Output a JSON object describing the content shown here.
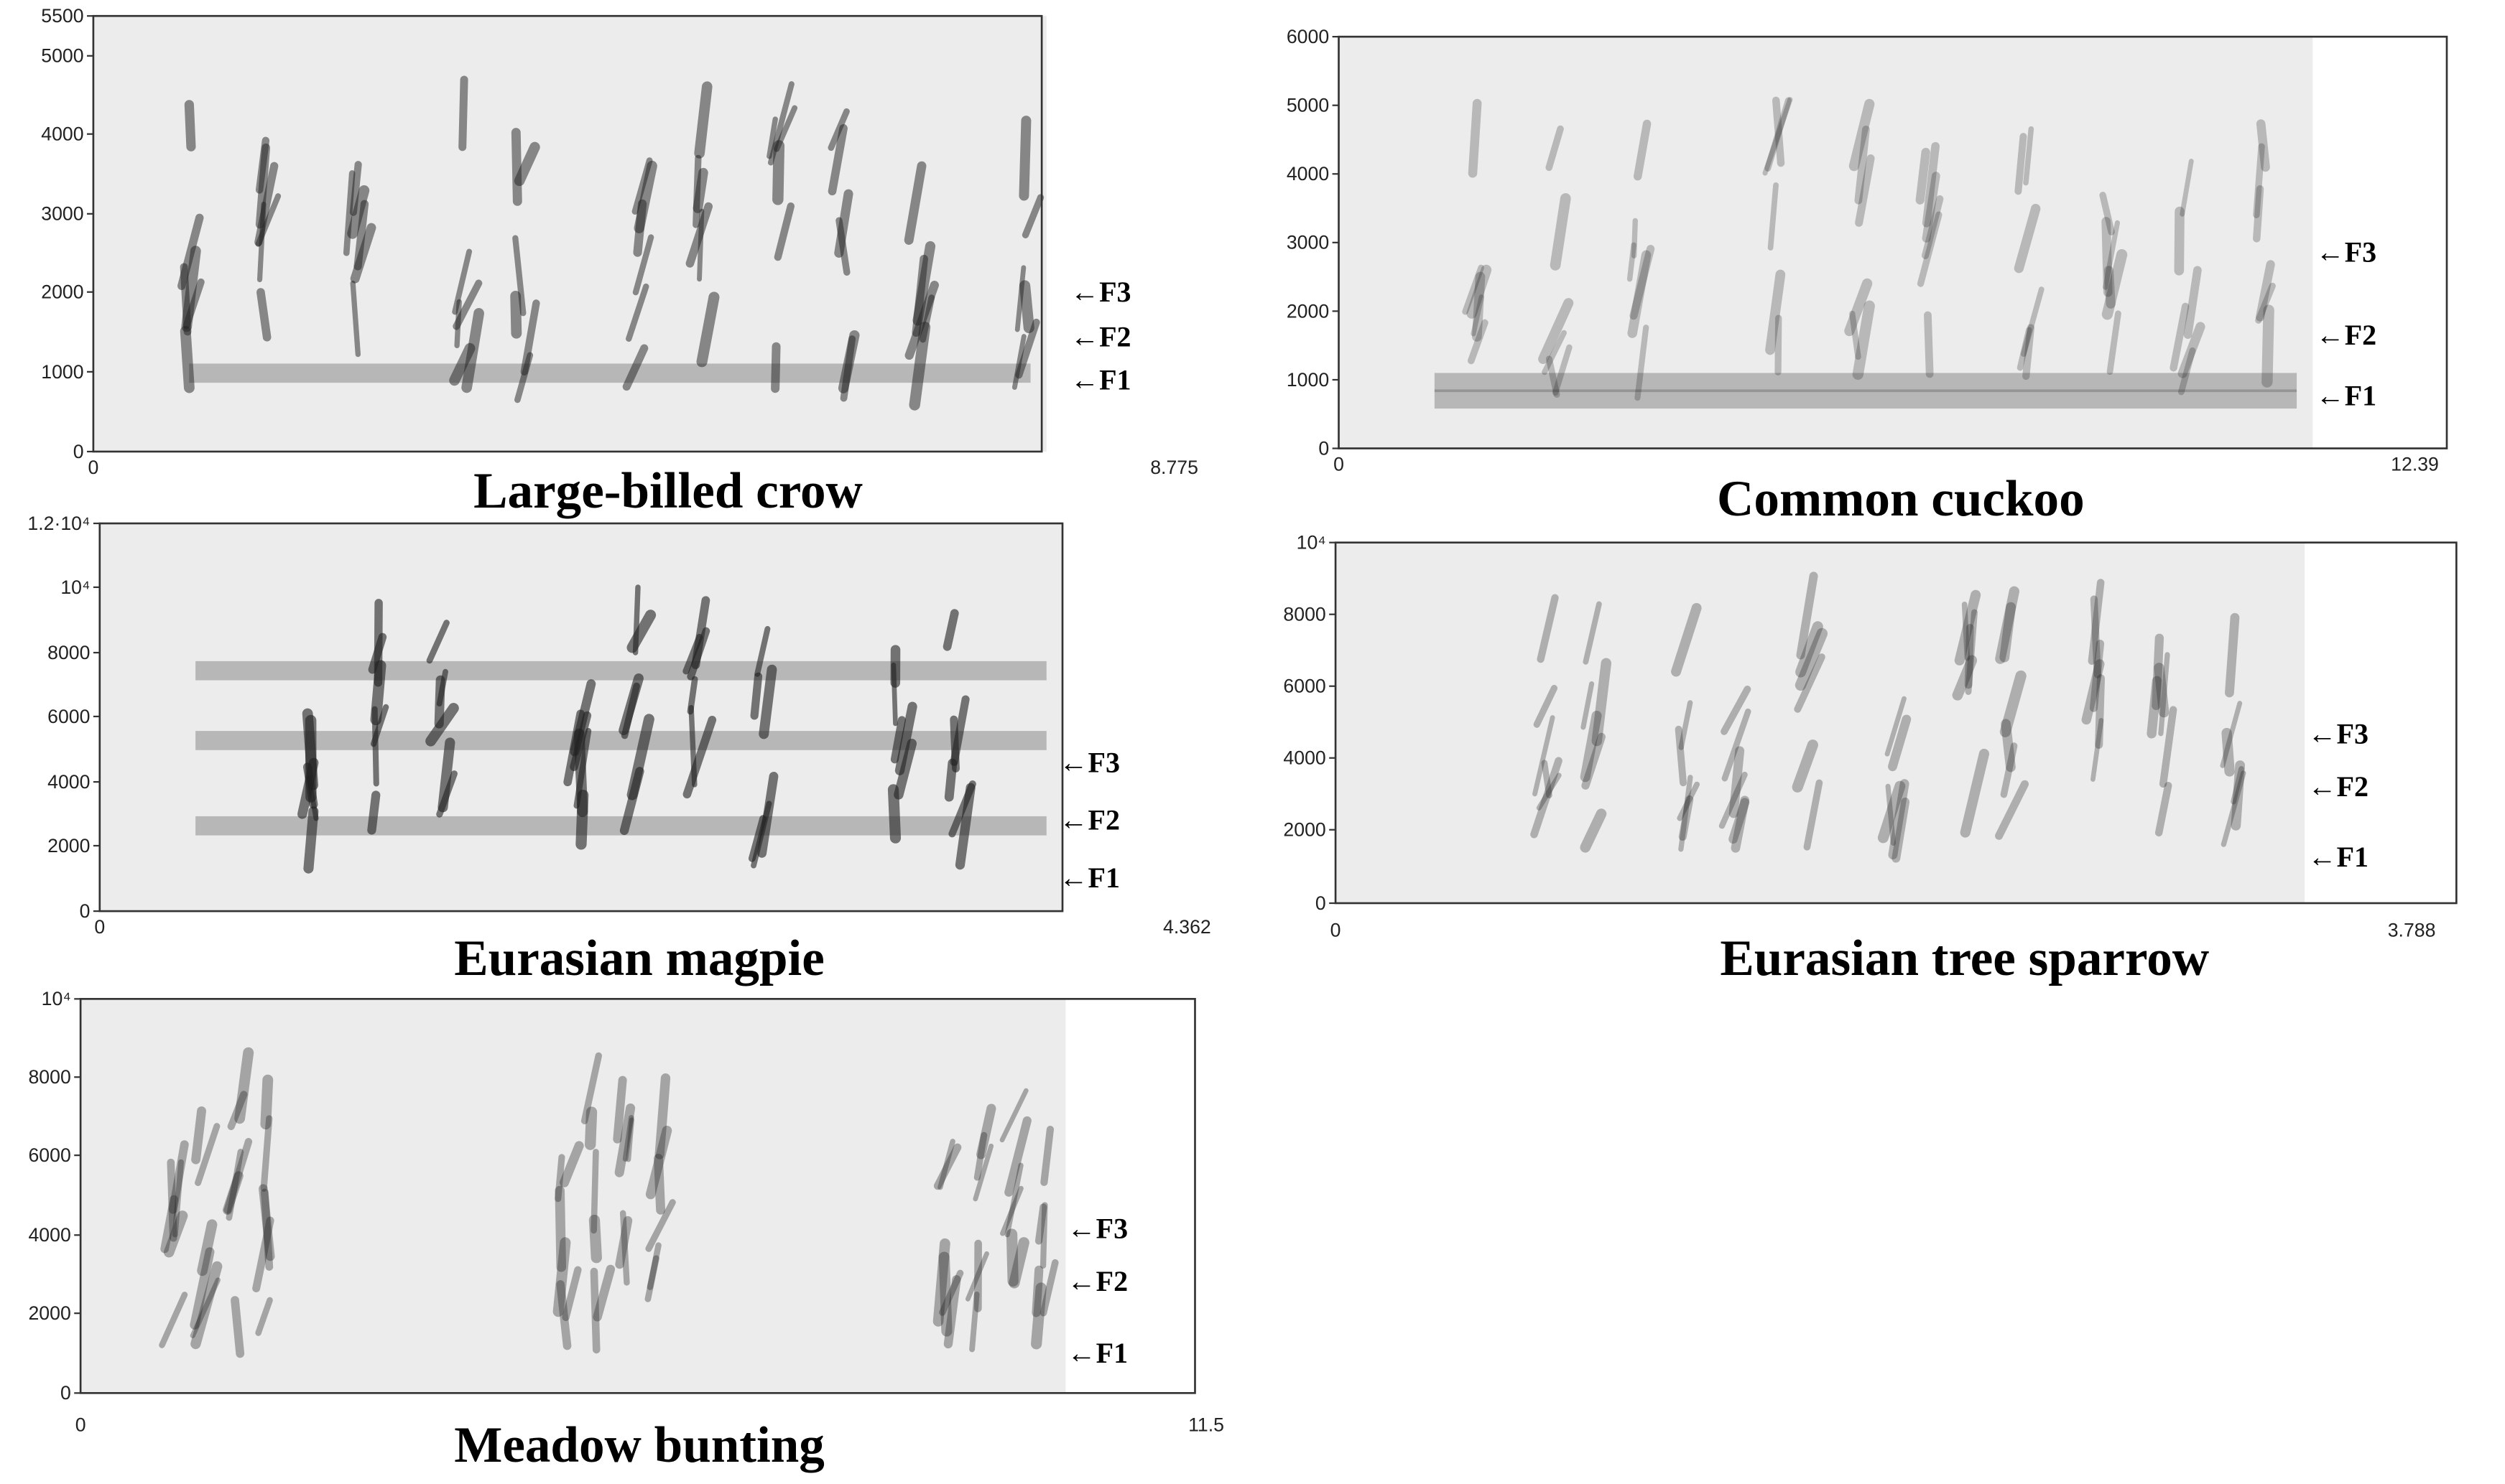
{
  "panels": [
    {
      "title": "Large-billed crow",
      "yticks": [
        5500,
        5000,
        4000,
        3000,
        2000,
        1000,
        0
      ],
      "xticks": [
        0,
        8.775
      ],
      "formants": [
        "←F3",
        "←F2",
        "←F1"
      ]
    },
    {
      "title": "Common cuckoo",
      "yticks": [
        6000,
        5000,
        4000,
        3000,
        2000,
        1000,
        0
      ],
      "xticks": [
        0,
        12.39
      ],
      "formants": [
        "←F3",
        "←F2",
        "←F1"
      ]
    },
    {
      "title": "Eurasian magpie",
      "yticks": [
        "1.2·10⁴",
        "10⁴",
        8000,
        6000,
        4000,
        2000,
        0
      ],
      "xticks": [
        0,
        4.362
      ],
      "formants": [
        "←F3",
        "←F2",
        "←F1"
      ]
    },
    {
      "title": "Eurasian tree sparrow",
      "yticks": [
        "10⁴",
        8000,
        6000,
        4000,
        2000,
        0
      ],
      "xticks": [
        0,
        3.788
      ],
      "formants": [
        "←F3",
        "←F2",
        "←F1"
      ]
    },
    {
      "title": "Meadow bunting",
      "yticks": [
        "10⁴",
        8000,
        6000,
        4000,
        2000,
        0
      ],
      "xticks": [
        0,
        11.5
      ],
      "formants": [
        "←F3",
        "←F2",
        "←F1"
      ]
    }
  ]
}
